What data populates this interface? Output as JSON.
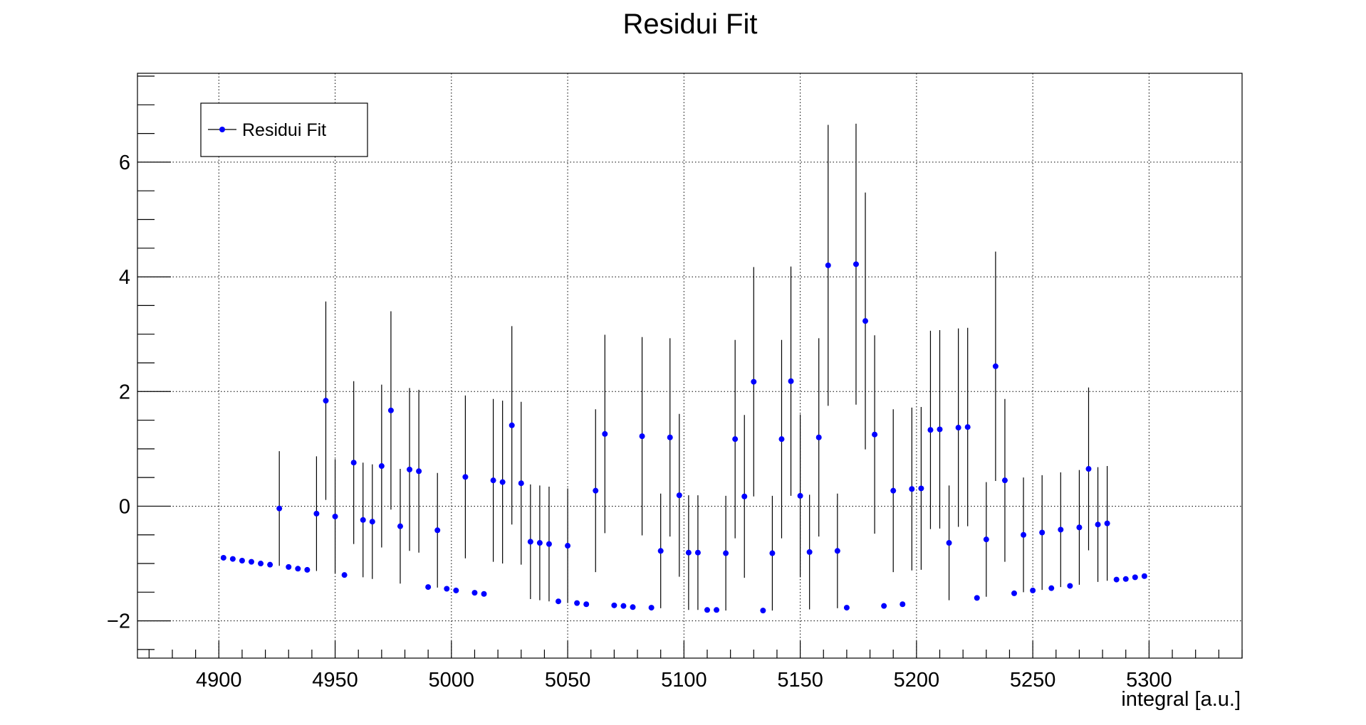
{
  "chart_data": {
    "type": "scatter",
    "title": "Residui Fit",
    "xlabel": "integral [a.u.]",
    "ylabel": "",
    "xlim": [
      4865,
      5340
    ],
    "ylim": [
      -2.65,
      7.55
    ],
    "xticks": [
      4900,
      4950,
      5000,
      5050,
      5100,
      5150,
      5200,
      5250,
      5300
    ],
    "xtick_labels": [
      "4900",
      "4950",
      "5000",
      "5050",
      "5100",
      "5150",
      "5200",
      "5250",
      "5300"
    ],
    "yticks": [
      -2,
      0,
      2,
      4,
      6
    ],
    "ytick_labels": [
      "−2",
      "0",
      "2",
      "4",
      "6"
    ],
    "grid": true,
    "legend_position": "top-left",
    "colors": {
      "marker": "#0000ff",
      "error_bar": "#000000",
      "grid": "#000000"
    },
    "series": [
      {
        "name": "Residui Fit",
        "points": [
          {
            "x": 4902,
            "y": -0.9,
            "err": 0
          },
          {
            "x": 4906,
            "y": -0.92,
            "err": 0
          },
          {
            "x": 4910,
            "y": -0.95,
            "err": 0
          },
          {
            "x": 4914,
            "y": -0.97,
            "err": 0
          },
          {
            "x": 4918,
            "y": -1.0,
            "err": 0
          },
          {
            "x": 4922,
            "y": -1.02,
            "err": 0
          },
          {
            "x": 4926,
            "y": -0.04,
            "err": 1.0
          },
          {
            "x": 4930,
            "y": -1.06,
            "err": 0
          },
          {
            "x": 4934,
            "y": -1.09,
            "err": 0
          },
          {
            "x": 4938,
            "y": -1.11,
            "err": 0
          },
          {
            "x": 4942,
            "y": -0.13,
            "err": 1.0
          },
          {
            "x": 4946,
            "y": 1.84,
            "err": 1.73
          },
          {
            "x": 4950,
            "y": -0.18,
            "err": 1.0
          },
          {
            "x": 4954,
            "y": -1.2,
            "err": 0
          },
          {
            "x": 4958,
            "y": 0.76,
            "err": 1.42
          },
          {
            "x": 4962,
            "y": -0.24,
            "err": 1.0
          },
          {
            "x": 4966,
            "y": -0.27,
            "err": 1.0
          },
          {
            "x": 4970,
            "y": 0.7,
            "err": 1.42
          },
          {
            "x": 4974,
            "y": 1.67,
            "err": 1.73
          },
          {
            "x": 4978,
            "y": -0.35,
            "err": 1.0
          },
          {
            "x": 4982,
            "y": 0.64,
            "err": 1.42
          },
          {
            "x": 4986,
            "y": 0.61,
            "err": 1.42
          },
          {
            "x": 4990,
            "y": -1.41,
            "err": 0
          },
          {
            "x": 4994,
            "y": -0.42,
            "err": 1.0
          },
          {
            "x": 4998,
            "y": -1.44,
            "err": 0
          },
          {
            "x": 5002,
            "y": -1.47,
            "err": 0
          },
          {
            "x": 5006,
            "y": 0.51,
            "err": 1.42
          },
          {
            "x": 5010,
            "y": -1.51,
            "err": 0
          },
          {
            "x": 5014,
            "y": -1.53,
            "err": 0
          },
          {
            "x": 5018,
            "y": 0.45,
            "err": 1.42
          },
          {
            "x": 5022,
            "y": 0.42,
            "err": 1.42
          },
          {
            "x": 5026,
            "y": 1.41,
            "err": 1.73
          },
          {
            "x": 5030,
            "y": 0.4,
            "err": 1.42
          },
          {
            "x": 5034,
            "y": -0.62,
            "err": 1.0
          },
          {
            "x": 5038,
            "y": -0.64,
            "err": 1.0
          },
          {
            "x": 5042,
            "y": -0.66,
            "err": 1.0
          },
          {
            "x": 5046,
            "y": -1.66,
            "err": 0
          },
          {
            "x": 5050,
            "y": -0.69,
            "err": 1.0
          },
          {
            "x": 5054,
            "y": -1.69,
            "err": 0
          },
          {
            "x": 5058,
            "y": -1.71,
            "err": 0
          },
          {
            "x": 5062,
            "y": 0.27,
            "err": 1.42
          },
          {
            "x": 5066,
            "y": 1.26,
            "err": 1.73
          },
          {
            "x": 5070,
            "y": -1.73,
            "err": 0
          },
          {
            "x": 5074,
            "y": -1.74,
            "err": 0
          },
          {
            "x": 5078,
            "y": -1.76,
            "err": 0
          },
          {
            "x": 5082,
            "y": 1.22,
            "err": 1.73
          },
          {
            "x": 5086,
            "y": -1.77,
            "err": 0
          },
          {
            "x": 5090,
            "y": -0.78,
            "err": 1.0
          },
          {
            "x": 5094,
            "y": 1.2,
            "err": 1.73
          },
          {
            "x": 5098,
            "y": 0.19,
            "err": 1.42
          },
          {
            "x": 5102,
            "y": -0.81,
            "err": 1.0
          },
          {
            "x": 5106,
            "y": -0.81,
            "err": 1.0
          },
          {
            "x": 5110,
            "y": -1.81,
            "err": 0
          },
          {
            "x": 5114,
            "y": -1.81,
            "err": 0
          },
          {
            "x": 5118,
            "y": -0.82,
            "err": 1.0
          },
          {
            "x": 5122,
            "y": 1.17,
            "err": 1.73
          },
          {
            "x": 5126,
            "y": 0.17,
            "err": 1.42
          },
          {
            "x": 5130,
            "y": 2.17,
            "err": 2.0
          },
          {
            "x": 5134,
            "y": -1.82,
            "err": 0
          },
          {
            "x": 5138,
            "y": -0.82,
            "err": 1.0
          },
          {
            "x": 5142,
            "y": 1.17,
            "err": 1.73
          },
          {
            "x": 5146,
            "y": 2.18,
            "err": 2.0
          },
          {
            "x": 5150,
            "y": 0.18,
            "err": 1.42
          },
          {
            "x": 5154,
            "y": -0.8,
            "err": 1.0
          },
          {
            "x": 5158,
            "y": 1.2,
            "err": 1.73
          },
          {
            "x": 5162,
            "y": 4.2,
            "err": 2.45
          },
          {
            "x": 5166,
            "y": -0.78,
            "err": 1.0
          },
          {
            "x": 5170,
            "y": -1.77,
            "err": 0
          },
          {
            "x": 5174,
            "y": 4.22,
            "err": 2.45
          },
          {
            "x": 5178,
            "y": 3.23,
            "err": 2.24
          },
          {
            "x": 5182,
            "y": 1.25,
            "err": 1.73
          },
          {
            "x": 5186,
            "y": -1.74,
            "err": 0
          },
          {
            "x": 5190,
            "y": 0.27,
            "err": 1.42
          },
          {
            "x": 5194,
            "y": -1.71,
            "err": 0
          },
          {
            "x": 5198,
            "y": 0.3,
            "err": 1.42
          },
          {
            "x": 5202,
            "y": 0.31,
            "err": 1.42
          },
          {
            "x": 5206,
            "y": 1.33,
            "err": 1.73
          },
          {
            "x": 5210,
            "y": 1.34,
            "err": 1.73
          },
          {
            "x": 5214,
            "y": -0.64,
            "err": 1.0
          },
          {
            "x": 5218,
            "y": 1.37,
            "err": 1.73
          },
          {
            "x": 5222,
            "y": 1.38,
            "err": 1.73
          },
          {
            "x": 5226,
            "y": -1.6,
            "err": 0
          },
          {
            "x": 5230,
            "y": -0.58,
            "err": 1.0
          },
          {
            "x": 5234,
            "y": 2.44,
            "err": 2.0
          },
          {
            "x": 5238,
            "y": 0.45,
            "err": 1.42
          },
          {
            "x": 5242,
            "y": -1.52,
            "err": 0
          },
          {
            "x": 5246,
            "y": -0.5,
            "err": 1.0
          },
          {
            "x": 5250,
            "y": -1.47,
            "err": 0
          },
          {
            "x": 5254,
            "y": -0.46,
            "err": 1.0
          },
          {
            "x": 5258,
            "y": -1.43,
            "err": 0
          },
          {
            "x": 5262,
            "y": -0.41,
            "err": 1.0
          },
          {
            "x": 5266,
            "y": -1.39,
            "err": 0
          },
          {
            "x": 5270,
            "y": -0.37,
            "err": 1.0
          },
          {
            "x": 5274,
            "y": 0.65,
            "err": 1.42
          },
          {
            "x": 5278,
            "y": -0.32,
            "err": 1.0
          },
          {
            "x": 5282,
            "y": -0.3,
            "err": 1.0
          },
          {
            "x": 5286,
            "y": -1.28,
            "err": 0
          },
          {
            "x": 5290,
            "y": -1.27,
            "err": 0
          },
          {
            "x": 5294,
            "y": -1.24,
            "err": 0
          },
          {
            "x": 5298,
            "y": -1.22,
            "err": 0
          }
        ]
      }
    ]
  }
}
